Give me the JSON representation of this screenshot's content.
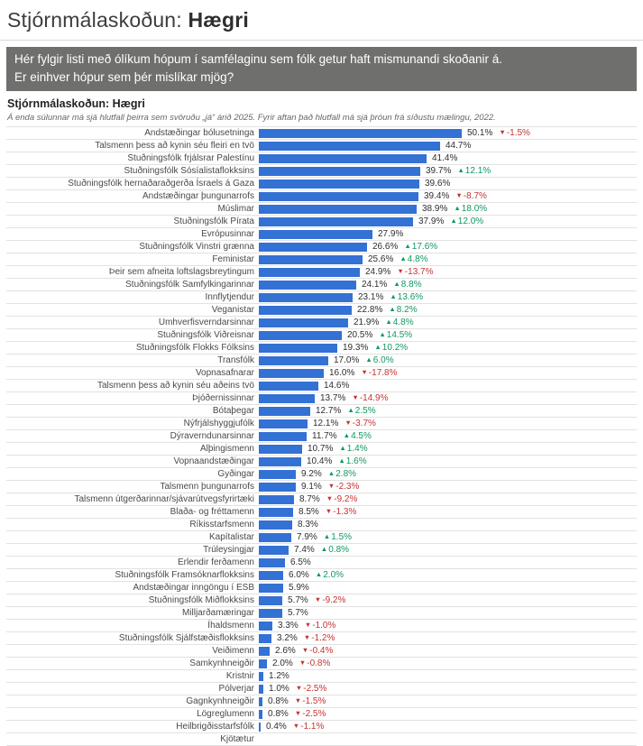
{
  "page": {
    "title_prefix": "Stjórnmálaskoðun:",
    "title_bold": "Hægri"
  },
  "question": {
    "line1": "Hér fylgir listi með ólíkum hópum í samfélaginu sem fólk getur haft mismunandi skoðanir á.",
    "line2": "Er einhver hópur sem þér mislíkar mjög?"
  },
  "colors": {
    "bar_blue": "#3371d4",
    "up_green": "#0f9960",
    "down_red": "#c63333",
    "box_gray": "#6f6f6e"
  },
  "icons": {
    "up_arrow": "▲",
    "down_arrow": "▼"
  },
  "chart_data": {
    "type": "bar",
    "orientation": "horizontal",
    "title": "Stjórnmálaskoðun: Hægri",
    "subtitle": "Á enda súlunnar má sjá hlutfall þeirra sem svöruðu „já“ árið 2025. Fyrir aftan það hlutfall má sjá þróun frá síðustu mælingu, 2022.",
    "unit": "%",
    "xlim": [
      0,
      100
    ],
    "grid": false,
    "legend": false,
    "rows": [
      {
        "label": "Andstæðingar bólusetninga",
        "value": 50.1,
        "change": "-1.5%",
        "direction": "down"
      },
      {
        "label": "Talsmenn þess að kynin séu fleiri en tvö",
        "value": 44.7,
        "change": null,
        "direction": null
      },
      {
        "label": "Stuðningsfólk frjálsrar Palestínu",
        "value": 41.4,
        "change": null,
        "direction": null
      },
      {
        "label": "Stuðningsfólk Sósíalistaflokksins",
        "value": 39.7,
        "change": "12.1%",
        "direction": "up"
      },
      {
        "label": "Stuðningsfólk hernaðaraðgerða Ísraels á Gaza",
        "value": 39.6,
        "change": null,
        "direction": null
      },
      {
        "label": "Andstæðingar þungunarrofs",
        "value": 39.4,
        "change": "-8.7%",
        "direction": "down"
      },
      {
        "label": "Múslimar",
        "value": 38.9,
        "change": "18.0%",
        "direction": "up"
      },
      {
        "label": "Stuðningsfólk Pírata",
        "value": 37.9,
        "change": "12.0%",
        "direction": "up"
      },
      {
        "label": "Evrópusinnar",
        "value": 27.9,
        "change": null,
        "direction": null
      },
      {
        "label": "Stuðningsfólk Vinstri grænna",
        "value": 26.6,
        "change": "17.6%",
        "direction": "up"
      },
      {
        "label": "Feministar",
        "value": 25.6,
        "change": "4.8%",
        "direction": "up"
      },
      {
        "label": "Þeir sem afneita loftslagsbreytingum",
        "value": 24.9,
        "change": "-13.7%",
        "direction": "down"
      },
      {
        "label": "Stuðningsfólk Samfylkingarinnar",
        "value": 24.1,
        "change": "8.8%",
        "direction": "up"
      },
      {
        "label": "Innflytjendur",
        "value": 23.1,
        "change": "13.6%",
        "direction": "up"
      },
      {
        "label": "Veganistar",
        "value": 22.8,
        "change": "8.2%",
        "direction": "up"
      },
      {
        "label": "Umhverfisverndarsinnar",
        "value": 21.9,
        "change": "4.8%",
        "direction": "up"
      },
      {
        "label": "Stuðningsfólk Viðreisnar",
        "value": 20.5,
        "change": "14.5%",
        "direction": "up"
      },
      {
        "label": "Stuðningsfólk Flokks Fólksins",
        "value": 19.3,
        "change": "10.2%",
        "direction": "up"
      },
      {
        "label": "Transfólk",
        "value": 17.0,
        "change": "6.0%",
        "direction": "up"
      },
      {
        "label": "Vopnasafnarar",
        "value": 16.0,
        "change": "-17.8%",
        "direction": "down"
      },
      {
        "label": "Talsmenn þess að kynin séu aðeins tvö",
        "value": 14.6,
        "change": null,
        "direction": null
      },
      {
        "label": "Þjóðernissinnar",
        "value": 13.7,
        "change": "-14.9%",
        "direction": "down"
      },
      {
        "label": "Bótaþegar",
        "value": 12.7,
        "change": "2.5%",
        "direction": "up"
      },
      {
        "label": "Nýfrjálshyggjufólk",
        "value": 12.1,
        "change": "-3.7%",
        "direction": "down"
      },
      {
        "label": "Dýraverndunarsinnar",
        "value": 11.7,
        "change": "4.5%",
        "direction": "up"
      },
      {
        "label": "Alþingismenn",
        "value": 10.7,
        "change": "1.4%",
        "direction": "up"
      },
      {
        "label": "Vopnaandstæðingar",
        "value": 10.4,
        "change": "1.6%",
        "direction": "up"
      },
      {
        "label": "Gyðingar",
        "value": 9.2,
        "change": "2.8%",
        "direction": "up"
      },
      {
        "label": "Talsmenn þungunarrofs",
        "value": 9.1,
        "change": "-2.3%",
        "direction": "down"
      },
      {
        "label": "Talsmenn útgerðarinnar/sjávarútvegsfyrirtæki",
        "value": 8.7,
        "change": "-9.2%",
        "direction": "down"
      },
      {
        "label": "Blaða- og fréttamenn",
        "value": 8.5,
        "change": "-1.3%",
        "direction": "down"
      },
      {
        "label": "Ríkisstarfsmenn",
        "value": 8.3,
        "change": null,
        "direction": null
      },
      {
        "label": "Kapítalistar",
        "value": 7.9,
        "change": "1.5%",
        "direction": "up"
      },
      {
        "label": "Trúleysingjar",
        "value": 7.4,
        "change": "0.8%",
        "direction": "up"
      },
      {
        "label": "Erlendir ferðamenn",
        "value": 6.5,
        "change": null,
        "direction": null
      },
      {
        "label": "Stuðningsfólk Framsóknarflokksins",
        "value": 6.0,
        "change": "2.0%",
        "direction": "up"
      },
      {
        "label": "Andstæðingar inngöngu í ESB",
        "value": 5.9,
        "change": null,
        "direction": null
      },
      {
        "label": "Stuðningsfólk Miðflokksins",
        "value": 5.7,
        "change": "-9.2%",
        "direction": "down"
      },
      {
        "label": "Milljarðamæringar",
        "value": 5.7,
        "change": null,
        "direction": null
      },
      {
        "label": "Íhaldsmenn",
        "value": 3.3,
        "change": "-1.0%",
        "direction": "down"
      },
      {
        "label": "Stuðningsfólk Sjálfstæðisflokksins",
        "value": 3.2,
        "change": "-1.2%",
        "direction": "down"
      },
      {
        "label": "Veiðimenn",
        "value": 2.6,
        "change": "-0.4%",
        "direction": "down"
      },
      {
        "label": "Samkynhneigðir",
        "value": 2.0,
        "change": "-0.8%",
        "direction": "down"
      },
      {
        "label": "Kristnir",
        "value": 1.2,
        "change": null,
        "direction": null
      },
      {
        "label": "Pólverjar",
        "value": 1.0,
        "change": "-2.5%",
        "direction": "down"
      },
      {
        "label": "Gagnkynhneigðir",
        "value": 0.8,
        "change": "-1.5%",
        "direction": "down"
      },
      {
        "label": "Lögreglumenn",
        "value": 0.8,
        "change": "-2.5%",
        "direction": "down"
      },
      {
        "label": "Heilbrigðisstarfsfólk",
        "value": 0.4,
        "change": "-1.1%",
        "direction": "down"
      },
      {
        "label": "Kjötætur",
        "value": null,
        "change": null,
        "direction": null
      }
    ]
  }
}
